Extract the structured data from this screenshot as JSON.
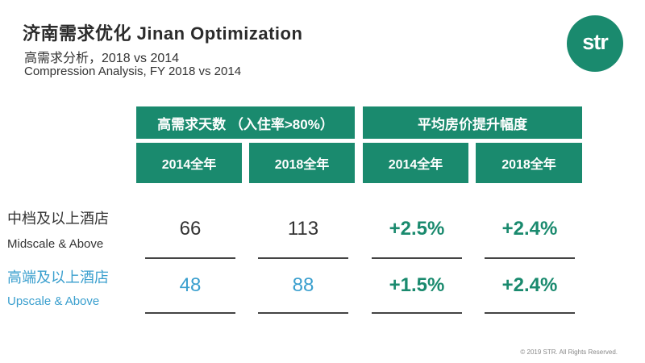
{
  "header": {
    "title": "济南需求优化 Jinan Optimization",
    "subtitle_cn": "高需求分析，2018 vs 2014",
    "subtitle_en": "Compression Analysis, FY 2018 vs 2014"
  },
  "logo": {
    "text": "str"
  },
  "table": {
    "group_headers": [
      "高需求天数 （入住率>80%）",
      "平均房价提升幅度"
    ],
    "sub_headers": [
      "2014全年",
      "2018全年",
      "2014全年",
      "2018全年"
    ],
    "rows": [
      {
        "label_cn": "中档及以上酒店",
        "label_en": "Midscale & Above",
        "values": [
          "66",
          "113",
          "+2.5%",
          "+2.4%"
        ]
      },
      {
        "label_cn": "高端及以上酒店",
        "label_en": "Upscale & Above",
        "values": [
          "48",
          "88",
          "+1.5%",
          "+2.4%"
        ]
      }
    ]
  },
  "colors": {
    "brand_green": "#1a8a6e",
    "upscale_blue": "#3a9fce",
    "text_dark": "#333333"
  },
  "footer": {
    "copyright": "© 2019 STR. All Rights Reserved."
  }
}
